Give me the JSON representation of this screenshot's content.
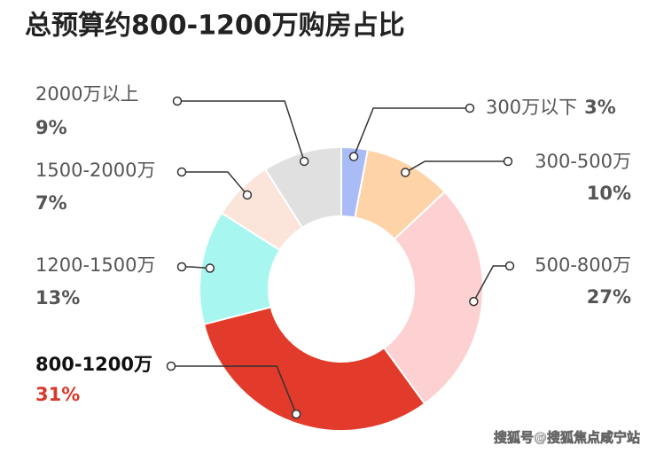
{
  "chart_data": {
    "type": "donut",
    "title": "总预算约800-1200万购房占比",
    "categories": [
      "300万以下",
      "300-500万",
      "500-800万",
      "800-1200万",
      "1200-1500万",
      "1500-2000万",
      "2000万以上"
    ],
    "values": [
      3,
      10,
      27,
      31,
      13,
      7,
      9
    ],
    "value_labels": [
      "3%",
      "10%",
      "27%",
      "31%",
      "13%",
      "7%",
      "9%"
    ],
    "colors": [
      "#a9bcf5",
      "#fdd3a7",
      "#fdd1d1",
      "#e23b2b",
      "#a8f6f0",
      "#fbe5da",
      "#e0e0e0"
    ],
    "highlight": 3,
    "highlight_color": "#d8382a",
    "watermark": "搜狐号@搜狐焦点咸宁站"
  }
}
